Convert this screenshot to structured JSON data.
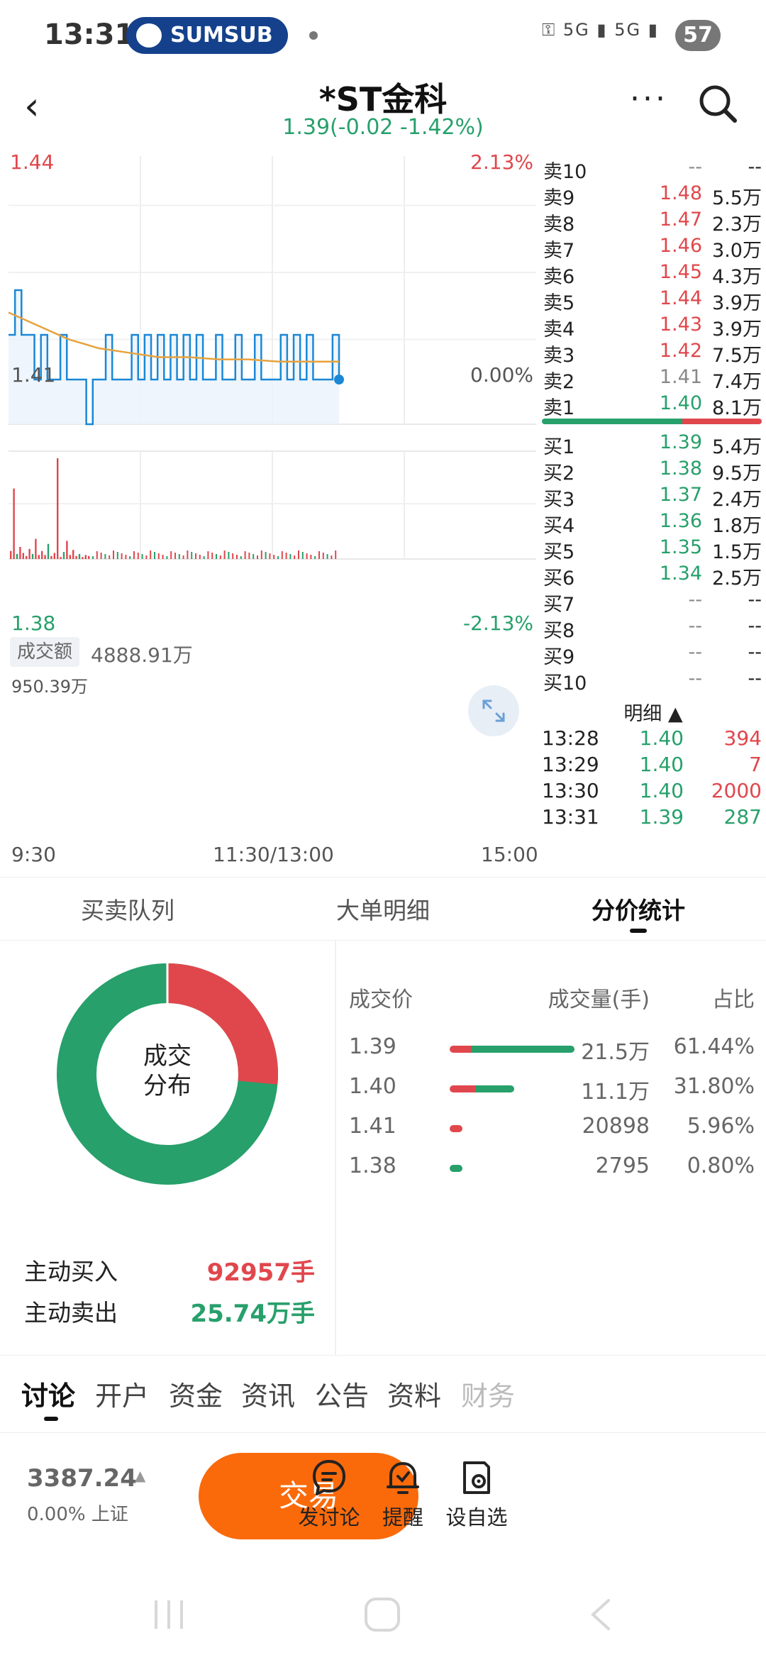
{
  "status": {
    "time": "13:31",
    "pill": "SUMSUB",
    "signal1": "5G",
    "signal2": "5G",
    "battery": "57"
  },
  "header": {
    "title": "*ST金科",
    "subtitle": "1.39(-0.02 -1.42%)"
  },
  "chart": {
    "price_top": "1.44",
    "pct_top": "2.13%",
    "price_mid": "1.41",
    "pct_mid": "0.00%",
    "price_bot": "1.38",
    "pct_bot": "-2.13%",
    "turnover_label": "成交额",
    "turnover_value": "4888.91万",
    "max_volume": "950.39万",
    "time_start": "9:30",
    "time_mid": "11:30/13:00",
    "time_end": "15:00"
  },
  "order_book": {
    "sell": [
      {
        "label": "卖10",
        "price": "--",
        "vol": "--",
        "color": "gray"
      },
      {
        "label": "卖9",
        "price": "1.48",
        "vol": "5.5万",
        "color": "red"
      },
      {
        "label": "卖8",
        "price": "1.47",
        "vol": "2.3万",
        "color": "red"
      },
      {
        "label": "卖7",
        "price": "1.46",
        "vol": "3.0万",
        "color": "red"
      },
      {
        "label": "卖6",
        "price": "1.45",
        "vol": "4.3万",
        "color": "red"
      },
      {
        "label": "卖5",
        "price": "1.44",
        "vol": "3.9万",
        "color": "red"
      },
      {
        "label": "卖4",
        "price": "1.43",
        "vol": "3.9万",
        "color": "red"
      },
      {
        "label": "卖3",
        "price": "1.42",
        "vol": "7.5万",
        "color": "red"
      },
      {
        "label": "卖2",
        "price": "1.41",
        "vol": "7.4万",
        "color": "gray"
      },
      {
        "label": "卖1",
        "price": "1.40",
        "vol": "8.1万",
        "color": "green"
      }
    ],
    "buy": [
      {
        "label": "买1",
        "price": "1.39",
        "vol": "5.4万",
        "color": "green"
      },
      {
        "label": "买2",
        "price": "1.38",
        "vol": "9.5万",
        "color": "green"
      },
      {
        "label": "买3",
        "price": "1.37",
        "vol": "2.4万",
        "color": "green"
      },
      {
        "label": "买4",
        "price": "1.36",
        "vol": "1.8万",
        "color": "green"
      },
      {
        "label": "买5",
        "price": "1.35",
        "vol": "1.5万",
        "color": "green"
      },
      {
        "label": "买6",
        "price": "1.34",
        "vol": "2.5万",
        "color": "green"
      },
      {
        "label": "买7",
        "price": "--",
        "vol": "--",
        "color": "gray"
      },
      {
        "label": "买8",
        "price": "--",
        "vol": "--",
        "color": "gray"
      },
      {
        "label": "买9",
        "price": "--",
        "vol": "--",
        "color": "gray"
      },
      {
        "label": "买10",
        "price": "--",
        "vol": "--",
        "color": "gray"
      }
    ],
    "buy_sell_ratio": 0.64,
    "detail_label": "明细 ▲",
    "trades": [
      {
        "time": "13:28",
        "price": "1.40",
        "vol": "394",
        "color": "red"
      },
      {
        "time": "13:29",
        "price": "1.40",
        "vol": "7",
        "color": "red"
      },
      {
        "time": "13:30",
        "price": "1.40",
        "vol": "2000",
        "color": "red"
      },
      {
        "time": "13:31",
        "price": "1.39",
        "vol": "287",
        "color": "green"
      }
    ]
  },
  "subtabs": [
    "买卖队列",
    "大单明细",
    "分价统计"
  ],
  "distribution": {
    "donut_label_1": "成交",
    "donut_label_2": "分布",
    "buy_share": 0.265,
    "active_buy_label": "主动买入",
    "active_buy_value": "92957手",
    "active_sell_label": "主动卖出",
    "active_sell_value": "25.74万手",
    "headers": {
      "price": "成交价",
      "volume": "成交量(手)",
      "ratio": "占比"
    },
    "rows": [
      {
        "price": "1.39",
        "volume": "21.5万",
        "ratio": "61.44%",
        "share": 0.6144,
        "red_frac": 0.17
      },
      {
        "price": "1.40",
        "volume": "11.1万",
        "ratio": "31.80%",
        "share": 0.318,
        "red_frac": 0.4
      },
      {
        "price": "1.41",
        "volume": "20898",
        "ratio": "5.96%",
        "share": 0.0596,
        "red_frac": 1.0
      },
      {
        "price": "1.38",
        "volume": "2795",
        "ratio": "0.80%",
        "share": 0.008,
        "red_frac": 0.0
      }
    ]
  },
  "bottom_tabs": [
    "讨论",
    "开户",
    "资金",
    "资讯",
    "公告",
    "资料",
    "财务"
  ],
  "footer": {
    "index_value": "3387.24",
    "index_sub": "0.00% 上证",
    "trade_label": "交易",
    "actions": [
      "发讨论",
      "提醒",
      "设自选"
    ]
  },
  "colors": {
    "up": "#e0474c",
    "down": "#27a06b",
    "line": "#1b87d6",
    "avg": "#e6a23c",
    "trade": "#fa6a0a"
  }
}
